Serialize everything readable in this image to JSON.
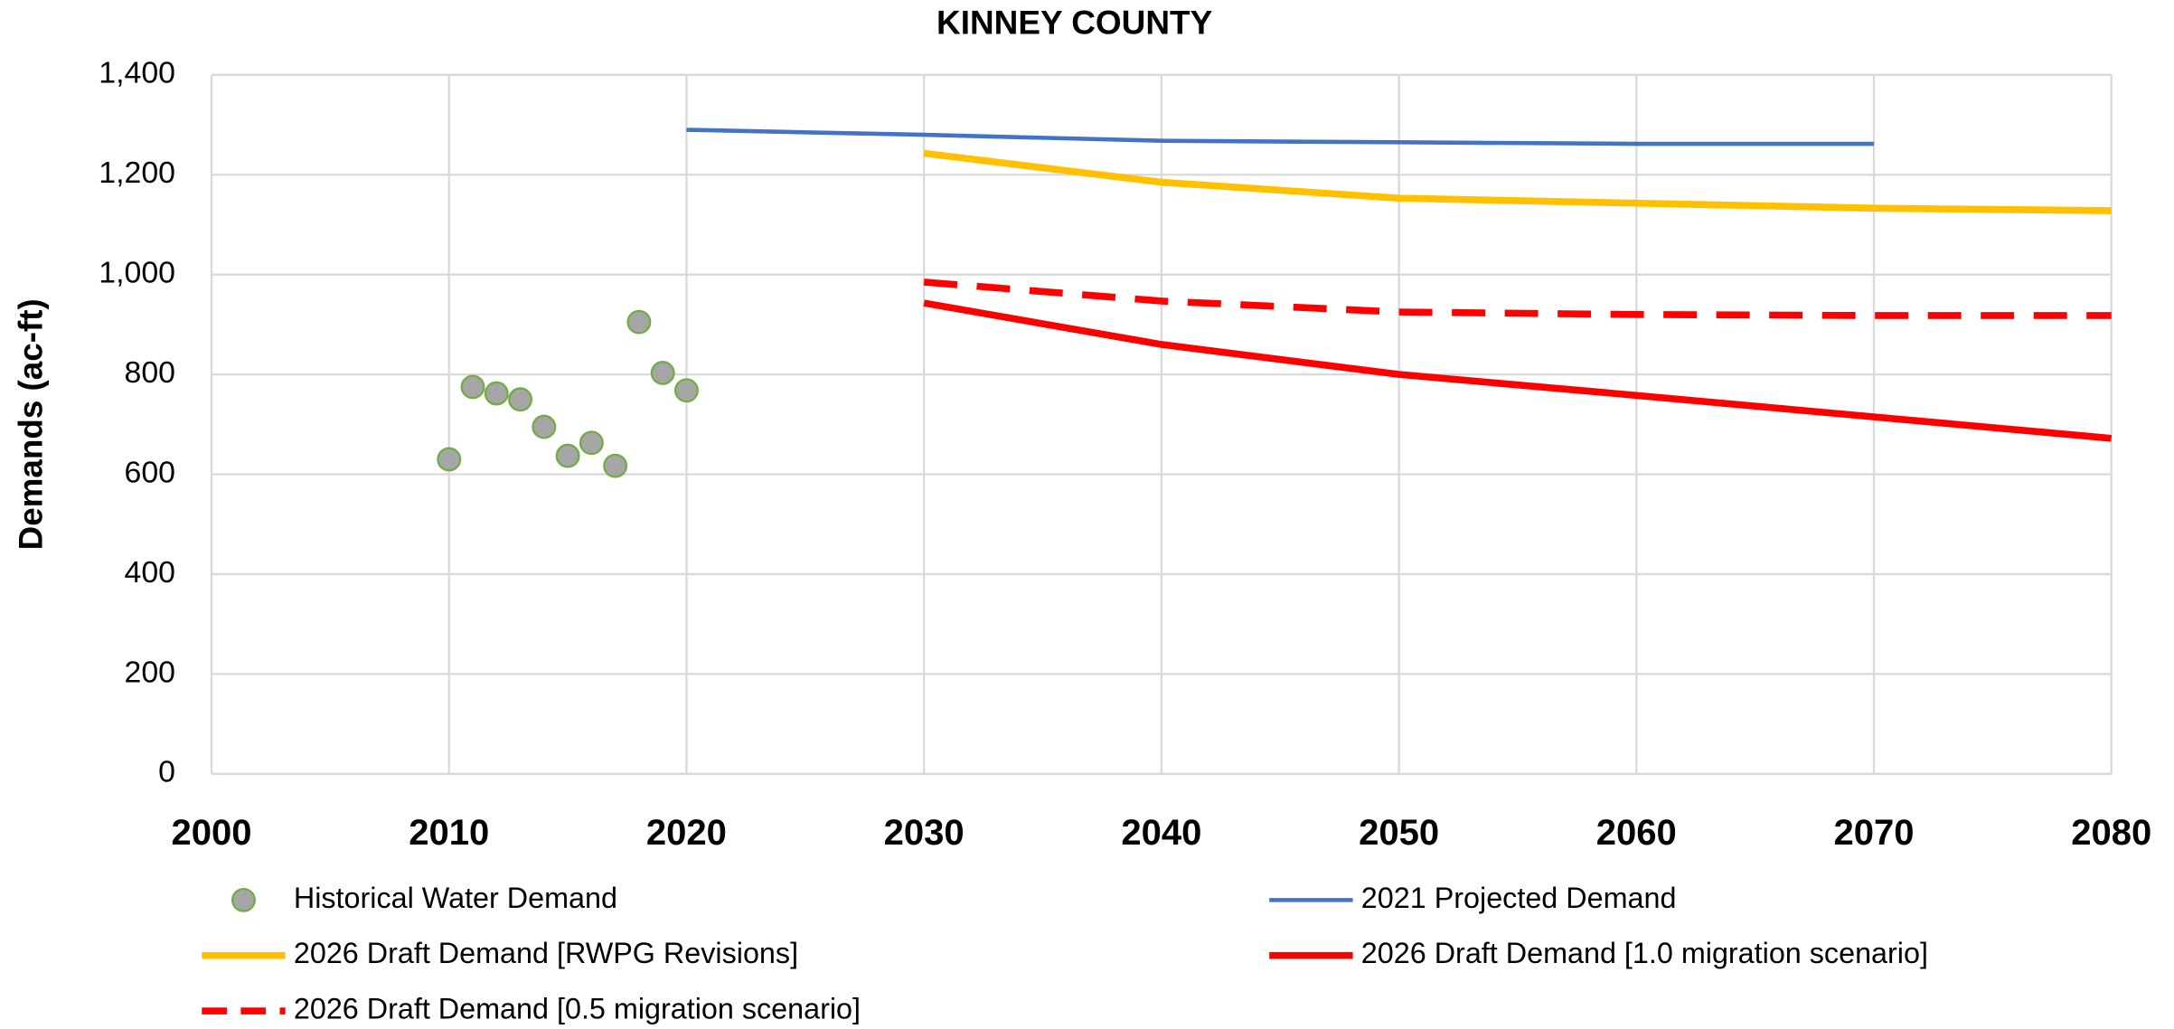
{
  "chart_data": {
    "type": "line",
    "title": "KINNEY COUNTY",
    "y_label": "Demands (ac-ft)",
    "xlim": [
      2000,
      2080
    ],
    "xticks": [
      2000,
      2010,
      2020,
      2030,
      2040,
      2050,
      2060,
      2070,
      2080
    ],
    "ylim": [
      0,
      1400
    ],
    "yticks": [
      0,
      200,
      400,
      600,
      800,
      {
        "value": 1000,
        "label": "1,000"
      },
      {
        "value": 1200,
        "label": "1,200"
      },
      {
        "value": 1400,
        "label": "1,400"
      }
    ],
    "grid": true,
    "legend": "bottom",
    "series": [
      {
        "name": "Historical Water Demand",
        "type": "scatter",
        "color": "#a6a6a6",
        "edge_color": "#70ad47",
        "x": [
          2010,
          2011,
          2012,
          2013,
          2014,
          2015,
          2016,
          2017,
          2018,
          2019,
          2020
        ],
        "values": [
          630,
          775,
          762,
          750,
          695,
          637,
          663,
          617,
          905,
          803,
          768
        ]
      },
      {
        "name": "2021 Projected Demand",
        "type": "line",
        "color": "#4472c4",
        "x": [
          2020,
          2030,
          2040,
          2050,
          2060,
          2070
        ],
        "values": [
          1290,
          1280,
          1268,
          1265,
          1262,
          1262
        ]
      },
      {
        "name": "2026 Draft Demand [RWPG Revisions]",
        "type": "line",
        "color": "#ffc000",
        "x": [
          2030,
          2040,
          2050,
          2060,
          2070,
          2080
        ],
        "values": [
          1243,
          1185,
          1153,
          1143,
          1133,
          1128
        ]
      },
      {
        "name": "2026 Draft Demand [1.0 migration scenario]",
        "type": "line",
        "color": "#ff0000",
        "x": [
          2030,
          2040,
          2050,
          2060,
          2070,
          2080
        ],
        "values": [
          943,
          860,
          800,
          758,
          715,
          672
        ]
      },
      {
        "name": "2026 Draft Demand [0.5 migration scenario]",
        "type": "line",
        "dashed": true,
        "color": "#ff0000",
        "x": [
          2030,
          2040,
          2050,
          2060,
          2070,
          2080
        ],
        "values": [
          985,
          947,
          925,
          920,
          918,
          918
        ]
      }
    ]
  }
}
